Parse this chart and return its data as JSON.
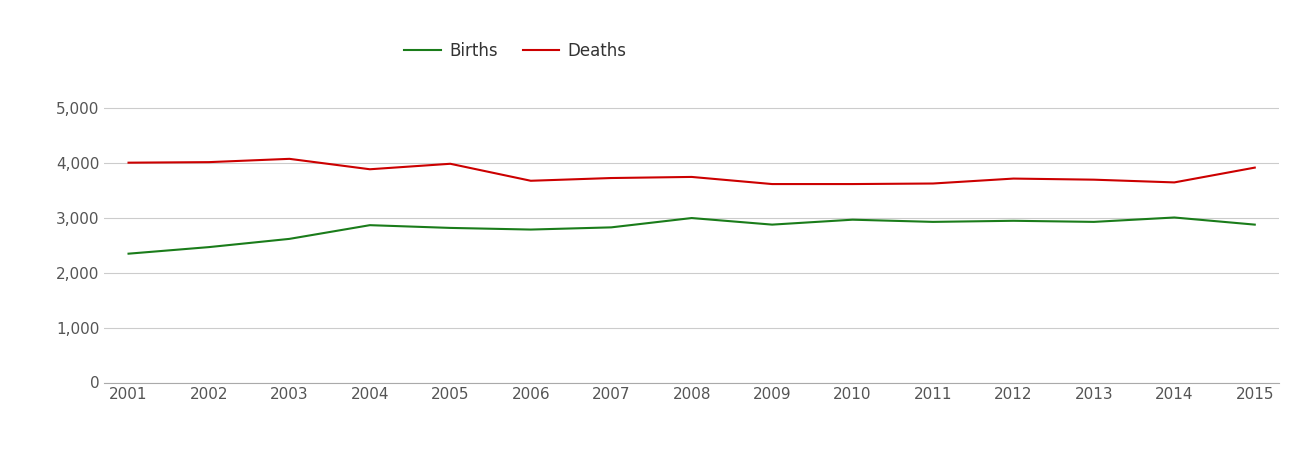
{
  "years": [
    2001,
    2002,
    2003,
    2004,
    2005,
    2006,
    2007,
    2008,
    2009,
    2010,
    2011,
    2012,
    2013,
    2014,
    2015
  ],
  "births": [
    2350,
    2470,
    2620,
    2870,
    2820,
    2790,
    2830,
    3000,
    2880,
    2970,
    2930,
    2950,
    2930,
    3010,
    2880
  ],
  "deaths": [
    4010,
    4020,
    4080,
    3890,
    3990,
    3680,
    3730,
    3750,
    3620,
    3620,
    3630,
    3720,
    3700,
    3650,
    3920
  ],
  "births_color": "#1a7c1a",
  "deaths_color": "#cc0000",
  "background_color": "#ffffff",
  "grid_color": "#cccccc",
  "legend_labels": [
    "Births",
    "Deaths"
  ],
  "ylim": [
    0,
    5500
  ],
  "yticks": [
    0,
    1000,
    2000,
    3000,
    4000,
    5000
  ],
  "ytick_labels": [
    "0",
    "1,000",
    "2,000",
    "3,000",
    "4,000",
    "5,000"
  ],
  "line_width": 1.5,
  "tick_label_color": "#555555",
  "legend_text_color": "#333333",
  "legend_fontsize": 12,
  "tick_fontsize": 11
}
